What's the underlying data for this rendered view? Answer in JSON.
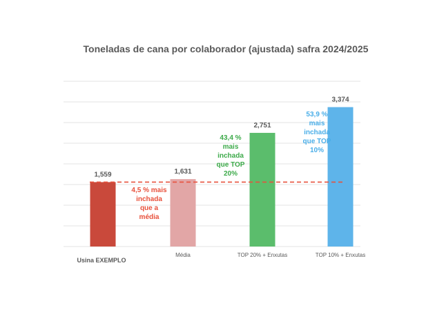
{
  "chart_data": {
    "type": "bar",
    "title": "Toneladas de cana por colaborador (ajustada) safra 2024/2025",
    "xlabel": "",
    "ylabel": "",
    "categories": [
      "Usina EXEMPLO",
      "Média",
      "TOP 20% + Enxutas",
      "TOP 10% + Enxutas"
    ],
    "values": [
      1559,
      1631,
      2751,
      3374
    ],
    "value_labels": [
      "1,559",
      "1,631",
      "2,751",
      "3,374"
    ],
    "colors": [
      "#c9493b",
      "#e2a6a6",
      "#5bbd6c",
      "#5eb4ea"
    ],
    "ylim": [
      0,
      4000
    ],
    "grid": true,
    "legend": "none",
    "reference_line": {
      "value": 1559,
      "style": "dashed",
      "color": "#e8513c"
    },
    "annotations": [
      {
        "category": "Média",
        "lines": [
          "4,5 % mais",
          "inchada",
          "que a",
          "média"
        ],
        "color": "#e8513c"
      },
      {
        "category": "TOP 20% + Enxutas",
        "lines": [
          "43,4 %",
          "mais",
          "inchada",
          "que TOP",
          "20%"
        ],
        "color": "#3daa4a"
      },
      {
        "category": "TOP 10% + Enxutas",
        "lines": [
          "53,9 %",
          "mais",
          "inchada",
          "que TOP",
          "10%"
        ],
        "color": "#4aaee8"
      }
    ]
  }
}
